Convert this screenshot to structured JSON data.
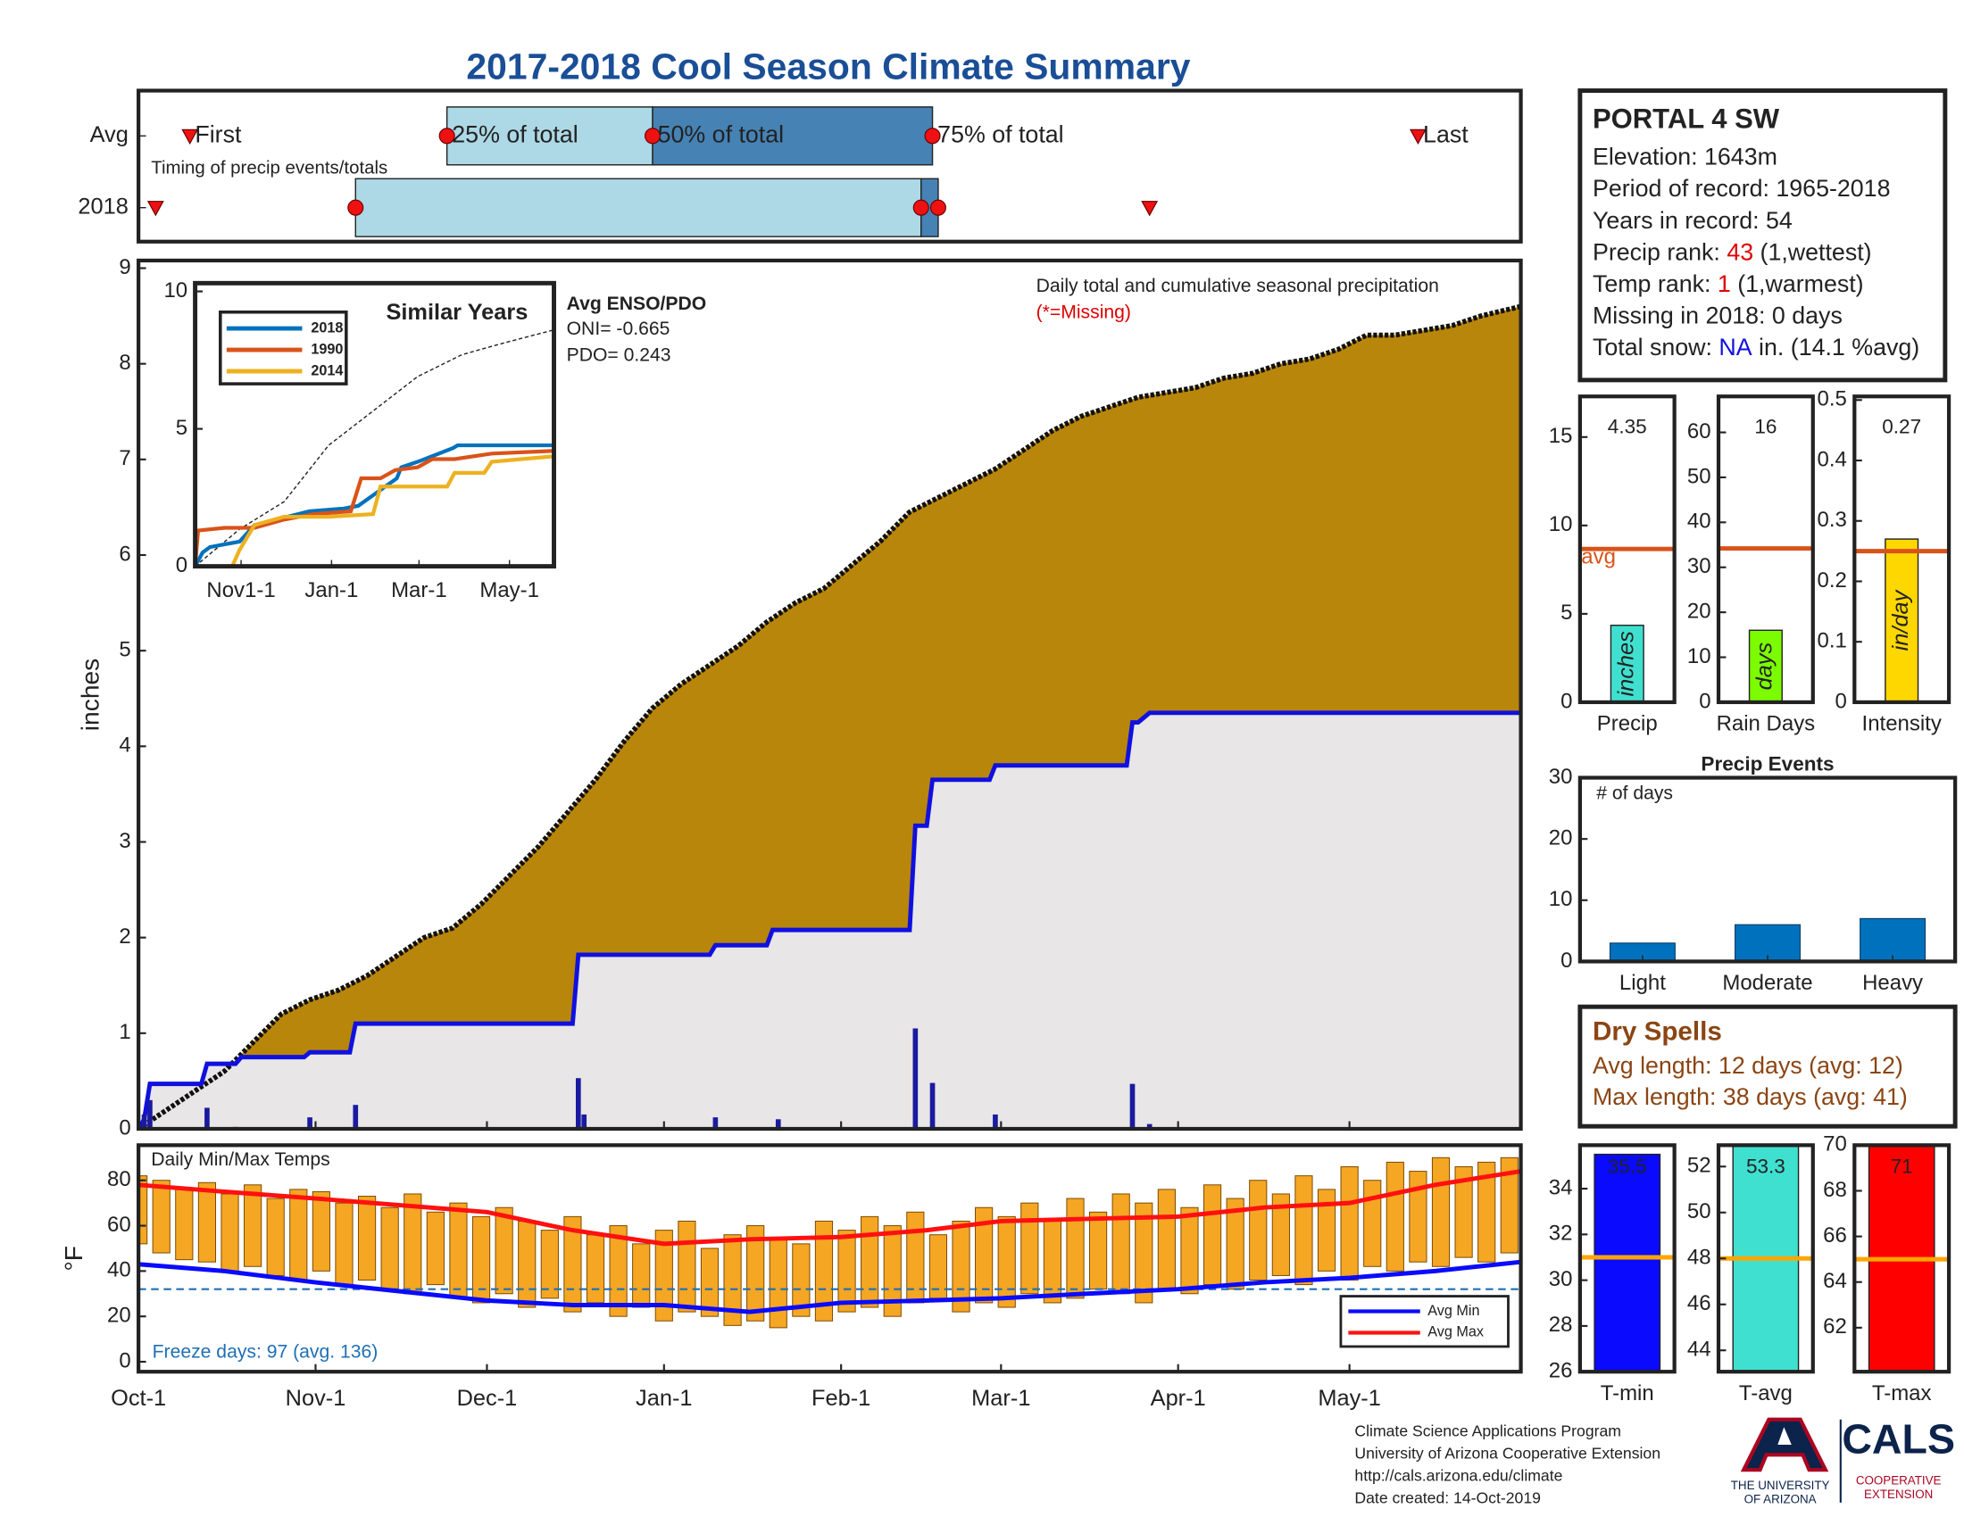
{
  "title": "2017-2018 Cool Season Climate Summary",
  "chart_data": [
    {
      "type": "timing",
      "xlim": [
        0,
        242
      ],
      "row_labels": [
        "Avg",
        "2018"
      ],
      "note": "Timing of precip events/totals",
      "labels": {
        "first": "First",
        "p25": "25% of total",
        "p50": "50% of total",
        "p75": "75% of total",
        "last": "Last"
      },
      "rows": [
        {
          "first": 9,
          "p25": 54,
          "p50": 90,
          "p75": 139,
          "last": 224
        },
        {
          "first": 3,
          "p25": 38,
          "p50": 137,
          "p75": 140,
          "last": 177
        }
      ],
      "colors": {
        "early": "#add8e6",
        "late": "#4682b4",
        "marker": "#ee1111"
      }
    },
    {
      "type": "area",
      "xlim": [
        0,
        242
      ],
      "ylim": [
        0,
        9.08
      ],
      "yticks": [
        0,
        1,
        2,
        3,
        4,
        5,
        6,
        7,
        8,
        9
      ],
      "ylabel": "inches",
      "annotation": "Daily total and cumulative seasonal precipitation",
      "missing_note": "(*=Missing)",
      "avg": {
        "color": "#b8860b",
        "x": [
          0,
          5,
          10,
          15,
          20,
          25,
          30,
          35,
          40,
          45,
          50,
          55,
          60,
          65,
          70,
          75,
          80,
          85,
          90,
          95,
          100,
          105,
          110,
          115,
          120,
          125,
          130,
          135,
          140,
          145,
          150,
          155,
          160,
          165,
          170,
          175,
          180,
          185,
          190,
          195,
          200,
          205,
          210,
          215,
          220,
          225,
          230,
          235,
          242
        ],
        "values": [
          0,
          0.2,
          0.4,
          0.6,
          0.9,
          1.2,
          1.35,
          1.45,
          1.6,
          1.8,
          2.0,
          2.1,
          2.35,
          2.65,
          2.95,
          3.3,
          3.65,
          4.05,
          4.4,
          4.65,
          4.85,
          5.05,
          5.3,
          5.5,
          5.65,
          5.9,
          6.15,
          6.45,
          6.6,
          6.75,
          6.9,
          7.1,
          7.3,
          7.45,
          7.55,
          7.65,
          7.7,
          7.75,
          7.85,
          7.9,
          8.0,
          8.05,
          8.15,
          8.3,
          8.3,
          8.35,
          8.4,
          8.5,
          8.6
        ]
      },
      "current": {
        "color": "#1010e0",
        "fill": "#e8e6e6",
        "x": [
          0,
          1,
          2,
          11,
          12,
          17,
          18,
          29,
          30,
          37,
          38,
          76,
          77,
          100,
          101,
          110,
          111,
          135,
          136,
          138,
          139,
          149,
          150,
          173,
          174,
          175,
          176,
          177,
          242
        ],
        "values": [
          0,
          0.1,
          0.47,
          0.47,
          0.68,
          0.68,
          0.75,
          0.75,
          0.8,
          0.8,
          1.1,
          1.1,
          1.82,
          1.82,
          1.92,
          1.92,
          2.08,
          2.08,
          3.17,
          3.17,
          3.65,
          3.65,
          3.8,
          3.8,
          4.25,
          4.25,
          4.3,
          4.35,
          4.35
        ]
      },
      "daily": {
        "color": "#1a1aa0",
        "x": [
          1,
          2,
          12,
          17,
          30,
          38,
          77,
          78,
          101,
          112,
          136,
          139,
          150,
          174,
          177
        ],
        "values": [
          0.15,
          0.3,
          0.22,
          0.02,
          0.12,
          0.25,
          0.53,
          0.15,
          0.12,
          0.1,
          1.05,
          0.48,
          0.15,
          0.47,
          0.05
        ]
      }
    },
    {
      "type": "line",
      "title": "Similar Years",
      "xlim": [
        0,
        242
      ],
      "ylim": [
        0,
        10.3
      ],
      "yticks": [
        0,
        5,
        10
      ],
      "xticks": [
        {
          "value": 31,
          "label": "Nov1-1"
        },
        {
          "value": 92,
          "label": "Jan-1"
        },
        {
          "value": 151,
          "label": "Mar-1"
        },
        {
          "value": 212,
          "label": "May-1"
        }
      ],
      "enso_title": "Avg ENSO/PDO",
      "enso_lines": [
        "ONI= -0.665",
        "PDO= 0.243"
      ],
      "series": [
        {
          "name": "2018",
          "color": "#0072bd",
          "x": [
            0,
            5,
            10,
            20,
            30,
            40,
            77,
            100,
            110,
            136,
            139,
            150,
            174,
            177,
            242
          ],
          "values": [
            0,
            0.5,
            0.7,
            0.8,
            0.9,
            1.5,
            2.0,
            2.1,
            2.2,
            3.2,
            3.6,
            3.8,
            4.3,
            4.4,
            4.4
          ]
        },
        {
          "name": "1990",
          "color": "#d95319",
          "x": [
            0,
            2,
            20,
            40,
            60,
            80,
            105,
            112,
            125,
            135,
            150,
            160,
            175,
            200,
            242
          ],
          "values": [
            0,
            1.3,
            1.4,
            1.4,
            1.7,
            1.9,
            2.0,
            3.2,
            3.2,
            3.5,
            3.6,
            3.9,
            3.9,
            4.1,
            4.2
          ]
        },
        {
          "name": "2014",
          "color": "#edb120",
          "x": [
            0,
            5,
            25,
            30,
            40,
            60,
            90,
            120,
            125,
            170,
            175,
            195,
            200,
            220,
            242
          ],
          "values": [
            0,
            0,
            0,
            0.6,
            1.5,
            1.8,
            1.8,
            1.9,
            2.9,
            2.9,
            3.4,
            3.4,
            3.8,
            3.9,
            4.0
          ]
        }
      ],
      "avg": {
        "color": "#222",
        "x": [
          0,
          30,
          60,
          90,
          120,
          150,
          180,
          210,
          242
        ],
        "values": [
          0,
          1.35,
          2.35,
          4.4,
          5.65,
          6.9,
          7.7,
          8.15,
          8.6
        ]
      }
    },
    {
      "type": "range-bar",
      "title": "Daily Min/Max Temps",
      "ylabel": "°F",
      "xlim": [
        0,
        242
      ],
      "ylim": [
        -4.4,
        95.5
      ],
      "yticks": [
        0,
        20,
        40,
        60,
        80
      ],
      "xticks": [
        {
          "value": 0,
          "label": "Oct-1"
        },
        {
          "value": 31,
          "label": "Nov-1"
        },
        {
          "value": 61,
          "label": "Dec-1"
        },
        {
          "value": 92,
          "label": "Jan-1"
        },
        {
          "value": 123,
          "label": "Feb-1"
        },
        {
          "value": 151,
          "label": "Mar-1"
        },
        {
          "value": 182,
          "label": "Apr-1"
        },
        {
          "value": 212,
          "label": "May-1"
        }
      ],
      "bar_color": "#f5a623",
      "freeze": 32,
      "freeze_color": "#1f6fb4",
      "freeze_label": "Freeze days: 97 (avg. 136)",
      "x": [
        0,
        4,
        8,
        12,
        16,
        20,
        24,
        28,
        32,
        36,
        40,
        44,
        48,
        52,
        56,
        60,
        64,
        68,
        72,
        76,
        80,
        84,
        88,
        92,
        96,
        100,
        104,
        108,
        112,
        116,
        120,
        124,
        128,
        132,
        136,
        140,
        144,
        148,
        152,
        156,
        160,
        164,
        168,
        172,
        176,
        180,
        184,
        188,
        192,
        196,
        200,
        204,
        208,
        212,
        216,
        220,
        224,
        228,
        232,
        236,
        240
      ],
      "max": [
        82,
        80,
        76,
        79,
        74,
        78,
        72,
        76,
        75,
        70,
        73,
        68,
        74,
        66,
        70,
        64,
        68,
        62,
        58,
        64,
        56,
        60,
        52,
        58,
        62,
        50,
        56,
        60,
        54,
        52,
        62,
        58,
        64,
        60,
        66,
        56,
        62,
        68,
        64,
        70,
        62,
        72,
        66,
        74,
        70,
        76,
        68,
        78,
        72,
        80,
        74,
        82,
        76,
        86,
        80,
        88,
        84,
        90,
        86,
        88,
        90
      ],
      "min": [
        52,
        48,
        45,
        44,
        40,
        42,
        38,
        36,
        40,
        34,
        36,
        32,
        30,
        34,
        28,
        26,
        30,
        24,
        28,
        22,
        26,
        20,
        24,
        18,
        22,
        20,
        16,
        18,
        15,
        20,
        18,
        22,
        24,
        20,
        26,
        28,
        22,
        26,
        24,
        30,
        26,
        28,
        32,
        30,
        26,
        32,
        30,
        34,
        32,
        36,
        38,
        34,
        40,
        36,
        42,
        40,
        44,
        42,
        46,
        44,
        48
      ],
      "avg_min": {
        "name": "Avg Min",
        "color": "#0a0aff",
        "x": [
          0,
          15,
          31,
          46,
          61,
          76,
          92,
          107,
          123,
          138,
          151,
          166,
          182,
          197,
          212,
          227,
          242
        ],
        "values": [
          43,
          40,
          35,
          31,
          27,
          25,
          25,
          22,
          26,
          27,
          28,
          30,
          32,
          35,
          37,
          40,
          44
        ]
      },
      "avg_max": {
        "name": "Avg Max",
        "color": "#ff1010",
        "x": [
          0,
          15,
          31,
          46,
          61,
          76,
          92,
          107,
          123,
          138,
          151,
          166,
          182,
          197,
          212,
          227,
          242
        ],
        "values": [
          78,
          75,
          72,
          69,
          66,
          58,
          52,
          54,
          55,
          58,
          62,
          63,
          64,
          68,
          70,
          78,
          84
        ]
      }
    },
    {
      "type": "bar",
      "title": "Precip",
      "ylim": [
        0,
        17.3
      ],
      "yticks": [
        0,
        5,
        10,
        15
      ],
      "value": 4.35,
      "avg": 8.67,
      "color": "#40e0d0",
      "avg_color": "#d95319",
      "unit_label": "inches",
      "avg_label": "avg"
    },
    {
      "type": "bar",
      "title": "Rain Days",
      "ylim": [
        0,
        68
      ],
      "yticks": [
        0,
        10,
        20,
        30,
        40,
        50,
        60
      ],
      "value": 16,
      "avg": 34.2,
      "color": "#7cfc00",
      "avg_color": "#d95319",
      "unit_label": "days"
    },
    {
      "type": "bar",
      "title": "Intensity",
      "ylim": [
        0,
        0.506
      ],
      "yticks": [
        0,
        0.1,
        0.2,
        0.3,
        0.4,
        0.5
      ],
      "value": 0.27,
      "avg": 0.25,
      "color": "#ffd700",
      "avg_color": "#d95319",
      "unit_label": "in/day"
    },
    {
      "type": "bar",
      "title": "Precip Events",
      "annotation": "# of days",
      "ylim": [
        0,
        30
      ],
      "yticks": [
        0,
        10,
        20,
        30
      ],
      "categories": [
        "Light",
        "Moderate",
        "Heavy"
      ],
      "values": [
        3,
        6,
        7
      ],
      "color": "#0072bd"
    },
    {
      "type": "bar",
      "title": "T-min",
      "ylim": [
        26,
        35.9
      ],
      "yticks": [
        26,
        28,
        30,
        32,
        34
      ],
      "value": 35.5,
      "avg": 31,
      "color": "#0a0aff",
      "avg_color": "#ffa500"
    },
    {
      "type": "bar",
      "title": "T-avg",
      "ylim": [
        43.07,
        52.93
      ],
      "yticks": [
        44,
        46,
        48,
        50,
        52
      ],
      "value": 53.3,
      "avg": 48,
      "color": "#40e0d0",
      "avg_color": "#ffa500"
    },
    {
      "type": "bar",
      "title": "T-max",
      "ylim": [
        60.07,
        70
      ],
      "yticks": [
        62,
        64,
        66,
        68,
        70
      ],
      "value": 71,
      "avg": 65,
      "color": "#ff0000",
      "avg_color": "#ffa500"
    }
  ],
  "station": {
    "name": "PORTAL 4 SW",
    "lines": [
      [
        {
          "text": "Elevation: 1643m"
        }
      ],
      [
        {
          "text": "Period of record: 1965-2018"
        }
      ],
      [
        {
          "text": "Years in record: 54"
        }
      ],
      [
        {
          "text": "Precip rank: "
        },
        {
          "text": "43",
          "color": "#e00000"
        },
        {
          "text": " (1,wettest)"
        }
      ],
      [
        {
          "text": "Temp rank: "
        },
        {
          "text": "1",
          "color": "#e00000"
        },
        {
          "text": " (1,warmest)"
        }
      ],
      [
        {
          "text": "Missing in 2018: 0 days"
        }
      ],
      [
        {
          "text": "Total snow: "
        },
        {
          "text": "NA",
          "color": "#1010e0"
        },
        {
          "text": " in. (14.1 %avg)"
        }
      ]
    ]
  },
  "dry_spells": {
    "title": "Dry Spells",
    "color": "#8b4513",
    "lines": [
      "Avg length: 12 days (avg: 12)",
      "Max length: 38 days (avg: 41)"
    ]
  },
  "footer": {
    "lines": [
      "Climate Science Applications Program",
      "University of Arizona Cooperative Extension",
      "http://cals.arizona.edu/climate",
      " Date created: 14-Oct-2019"
    ]
  },
  "logo": {
    "university": [
      "THE UNIVERSITY",
      "OF ARIZONA"
    ],
    "cals": "CALS",
    "extension": [
      "COOPERATIVE",
      "EXTENSION"
    ]
  }
}
